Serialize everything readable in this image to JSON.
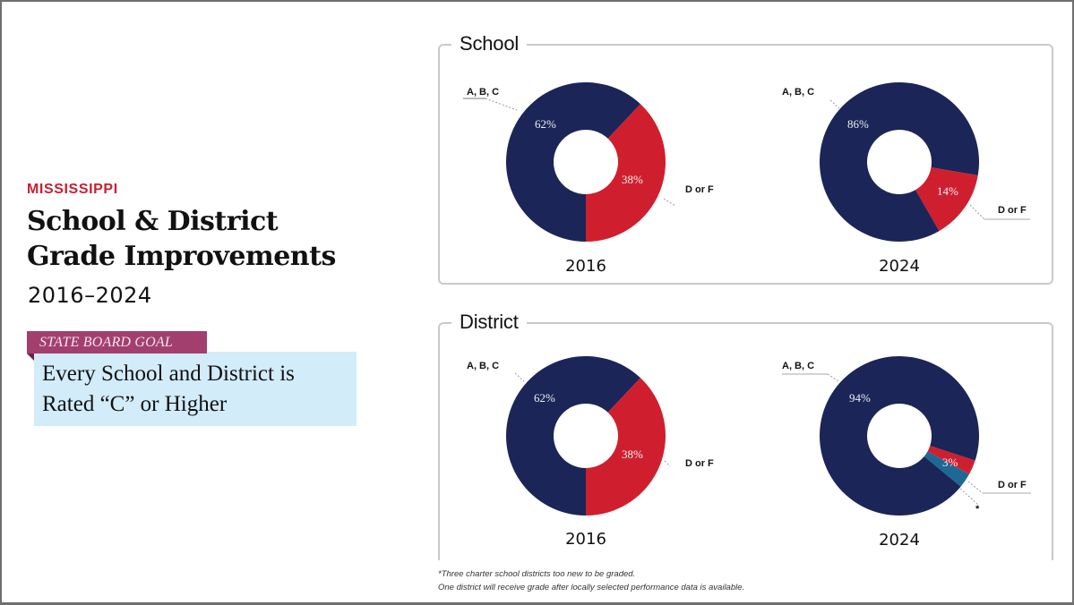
{
  "header": {
    "state": "MISSISSIPPI",
    "title_line1": "School & District",
    "title_line2": "Grade Improvements",
    "years": "2016–2024"
  },
  "goal": {
    "tag": "STATE BOARD GOAL",
    "line1": "Every School and District is",
    "line2": "Rated “C” or Higher"
  },
  "panels": {
    "school": {
      "title": "School"
    },
    "district": {
      "title": "District"
    }
  },
  "colors": {
    "abc": "#1b2557",
    "dorf": "#cf1f2f",
    "ungraded": "#1e6896",
    "goal_tag": "#a33f6e",
    "goal_box": "#d2ecf9",
    "state_red": "#c8202f"
  },
  "labels": {
    "abc": "A, B, C",
    "dorf": "D or F",
    "asterisk": "*"
  },
  "footnote": {
    "line1": "*Three charter school districts too new to be graded.",
    "line2": "One district will receive grade after locally selected performance data is available."
  },
  "chart_data": [
    {
      "type": "pie",
      "subtype": "donut",
      "title": "School 2016",
      "categories": [
        "A, B, C",
        "D or F"
      ],
      "values": [
        62,
        38
      ],
      "value_labels": [
        "62%",
        "38%"
      ],
      "year": "2016"
    },
    {
      "type": "pie",
      "subtype": "donut",
      "title": "School 2024",
      "categories": [
        "A, B, C",
        "D or F"
      ],
      "values": [
        86,
        14
      ],
      "value_labels": [
        "86%",
        "14%"
      ],
      "year": "2024"
    },
    {
      "type": "pie",
      "subtype": "donut",
      "title": "District 2016",
      "categories": [
        "A, B, C",
        "D or F"
      ],
      "values": [
        62,
        38
      ],
      "value_labels": [
        "62%",
        "38%"
      ],
      "year": "2016"
    },
    {
      "type": "pie",
      "subtype": "donut",
      "title": "District 2024",
      "categories": [
        "A, B, C",
        "D or F",
        "Not graded*"
      ],
      "values": [
        94,
        3,
        3
      ],
      "value_labels": [
        "94%",
        "3%",
        ""
      ],
      "year": "2024"
    }
  ]
}
